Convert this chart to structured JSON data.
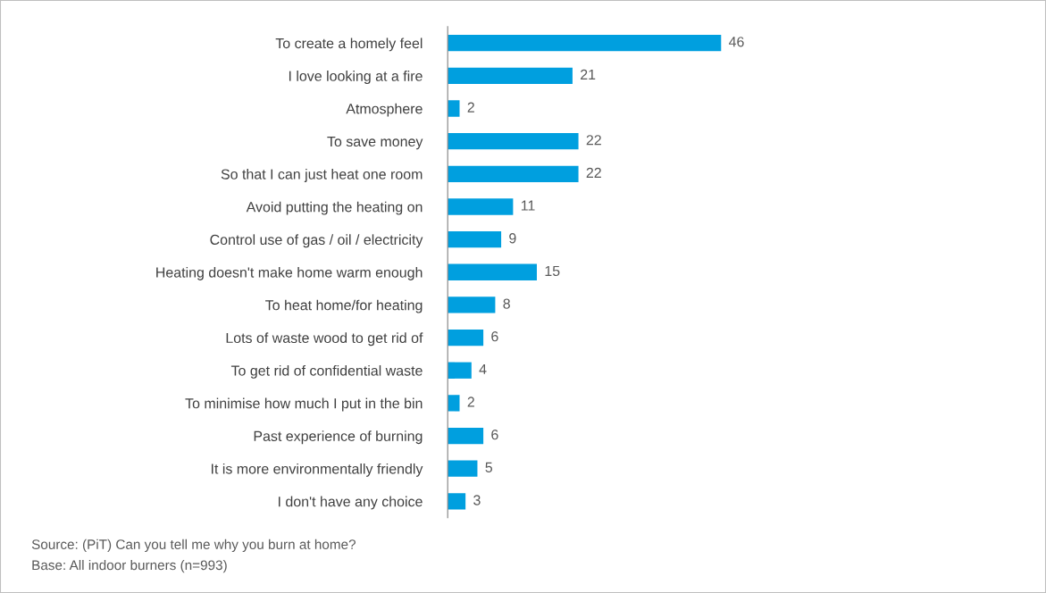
{
  "chart_data": {
    "type": "bar",
    "orientation": "horizontal",
    "data_labels": true,
    "grid": false,
    "legend": false,
    "tick_labels": "y",
    "categories": [
      "To create a homely feel",
      "I love looking at a fire",
      "Atmosphere",
      "To save money",
      "So that I can just heat one room",
      "Avoid putting the heating on",
      "Control use of gas / oil / electricity",
      "Heating doesn't make home warm enough",
      "To heat home/for heating",
      "Lots of waste wood to get rid of",
      "To get rid of confidential waste",
      "To minimise how much I put in the bin",
      "Past experience of burning",
      "It is more environmentally friendly",
      "I don't have any choice"
    ],
    "values": [
      46,
      21,
      2,
      22,
      22,
      11,
      9,
      15,
      8,
      6,
      4,
      2,
      6,
      5,
      3
    ],
    "color": "#009fdf",
    "annotations": [
      "Source: (PiT) Can you tell me why you burn at home?",
      "Base: All indoor burners (n=993)"
    ]
  }
}
